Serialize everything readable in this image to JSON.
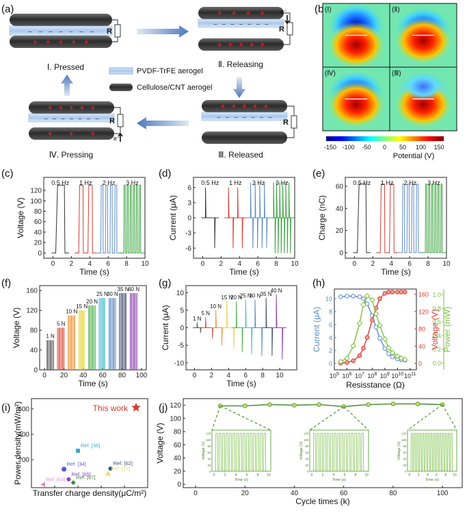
{
  "panel_labels": [
    "(a)",
    "(b)",
    "(c)",
    "(d)",
    "(e)",
    "(f)",
    "(g)",
    "(h)",
    "(i)",
    "(j)"
  ],
  "schematic": {
    "stages": [
      "Ⅰ. Pressed",
      "Ⅱ. Releasing",
      "Ⅲ. Released",
      "Ⅳ. Pressing"
    ],
    "legend": [
      "PVDF-TrFE aerogel",
      "Cellulose/CNT aerogel"
    ],
    "resistor_label": "R",
    "electron_label": "e⁻",
    "plus_sign": "+",
    "minus_sign": "–",
    "colors": {
      "electrode": "#333333",
      "film": "#b9d3f0",
      "arrow": "#5b86c4",
      "charge": "#e02020"
    }
  },
  "potential_map": {
    "quadrants": [
      "(Ⅰ)",
      "(Ⅱ)",
      "(Ⅳ)",
      "(Ⅲ)"
    ],
    "colorbar_ticks": [
      "-150",
      "-100",
      "-50",
      "0",
      "50",
      "100",
      "150"
    ],
    "colorbar_label": "Potential (V)"
  },
  "chart_data": [
    {
      "id": "c",
      "type": "line",
      "title": "",
      "xlabel": "Time (s)",
      "ylabel": "Voltage (V)",
      "xlim": [
        -1,
        10
      ],
      "ylim": [
        -10,
        145
      ],
      "xticks": [
        0,
        2,
        4,
        6,
        8,
        10
      ],
      "yticks": [
        0,
        20,
        40,
        60,
        80,
        100,
        120
      ],
      "annotations": [
        "0.5 Hz",
        "1 Hz",
        "2 Hz",
        "3 Hz"
      ],
      "series": [
        {
          "name": "0.5 Hz",
          "color": "#333333",
          "pulses": [
            {
              "t0": 0.3,
              "t1": 1.3
            }
          ],
          "high": 130,
          "low": 0
        },
        {
          "name": "1 Hz",
          "color": "#d63a2e",
          "pulses": [
            {
              "t0": 2.8,
              "t1": 3.3
            },
            {
              "t0": 3.8,
              "t1": 4.3
            }
          ],
          "high": 130,
          "low": 0
        },
        {
          "name": "2 Hz",
          "color": "#5b8ac6",
          "pulses": [
            {
              "t0": 5.2,
              "t1": 5.45
            },
            {
              "t0": 5.7,
              "t1": 5.95
            },
            {
              "t0": 6.2,
              "t1": 6.45
            },
            {
              "t0": 6.7,
              "t1": 6.95
            }
          ],
          "high": 130,
          "low": 0
        },
        {
          "name": "3 Hz",
          "color": "#35a13a",
          "pulses": [
            {
              "t0": 7.7,
              "t1": 7.87
            },
            {
              "t0": 8.03,
              "t1": 8.2
            },
            {
              "t0": 8.37,
              "t1": 8.53
            },
            {
              "t0": 8.7,
              "t1": 8.87
            },
            {
              "t0": 9.03,
              "t1": 9.2
            },
            {
              "t0": 9.37,
              "t1": 9.53
            }
          ],
          "high": 130,
          "low": 0
        }
      ]
    },
    {
      "id": "d",
      "type": "line",
      "title": "",
      "xlabel": "Time (s)",
      "ylabel": "Current (μA)",
      "xlim": [
        -1,
        10
      ],
      "ylim": [
        -8,
        8
      ],
      "xticks": [
        0,
        2,
        4,
        6,
        8,
        10
      ],
      "yticks": [
        -6,
        -3,
        0,
        3,
        6
      ],
      "annotations": [
        "0.5 Hz",
        "1 Hz",
        "2 Hz",
        "3 Hz"
      ],
      "series": [
        {
          "name": "0.5 Hz",
          "color": "#333333",
          "peaks": [
            {
              "t": 0.3,
              "v": 6
            },
            {
              "t": 1.3,
              "v": -6
            }
          ]
        },
        {
          "name": "1 Hz",
          "color": "#d63a2e",
          "peaks": [
            {
              "t": 2.8,
              "v": 6
            },
            {
              "t": 3.3,
              "v": -6
            },
            {
              "t": 3.8,
              "v": 6
            },
            {
              "t": 4.3,
              "v": -6
            }
          ]
        },
        {
          "name": "2 Hz",
          "color": "#5b8ac6",
          "peaks": [
            {
              "t": 5.2,
              "v": 7
            },
            {
              "t": 5.45,
              "v": -6
            },
            {
              "t": 5.7,
              "v": 7
            },
            {
              "t": 5.95,
              "v": -6
            },
            {
              "t": 6.2,
              "v": 7
            },
            {
              "t": 6.45,
              "v": -6
            },
            {
              "t": 6.7,
              "v": 7
            },
            {
              "t": 6.95,
              "v": -6
            }
          ]
        },
        {
          "name": "3 Hz",
          "color": "#35a13a",
          "peaks": [
            {
              "t": 7.7,
              "v": 7
            },
            {
              "t": 7.87,
              "v": -7
            },
            {
              "t": 8.03,
              "v": 7
            },
            {
              "t": 8.2,
              "v": -7
            },
            {
              "t": 8.37,
              "v": 7
            },
            {
              "t": 8.53,
              "v": -7
            },
            {
              "t": 8.7,
              "v": 7
            },
            {
              "t": 8.87,
              "v": -7
            },
            {
              "t": 9.03,
              "v": 7
            },
            {
              "t": 9.2,
              "v": -7
            },
            {
              "t": 9.37,
              "v": 7
            },
            {
              "t": 9.53,
              "v": -7
            }
          ]
        }
      ]
    },
    {
      "id": "e",
      "type": "line",
      "title": "",
      "xlabel": "Time (s)",
      "ylabel": "Charge (nC)",
      "xlim": [
        -1,
        10
      ],
      "ylim": [
        -5,
        68
      ],
      "xticks": [
        0,
        2,
        4,
        6,
        8,
        10
      ],
      "yticks": [
        0,
        20,
        40,
        60
      ],
      "annotations": [
        "0.5 Hz",
        "1 Hz",
        "2 Hz",
        "3 Hz"
      ],
      "series": [
        {
          "name": "0.5 Hz",
          "color": "#333333",
          "pulses": [
            {
              "t0": 0.3,
              "t1": 1.3
            }
          ],
          "high": 62,
          "low": 0
        },
        {
          "name": "1 Hz",
          "color": "#d63a2e",
          "pulses": [
            {
              "t0": 2.8,
              "t1": 3.3
            },
            {
              "t0": 3.8,
              "t1": 4.3
            }
          ],
          "high": 62,
          "low": 0
        },
        {
          "name": "2 Hz",
          "color": "#5b8ac6",
          "pulses": [
            {
              "t0": 5.2,
              "t1": 5.45
            },
            {
              "t0": 5.7,
              "t1": 5.95
            },
            {
              "t0": 6.2,
              "t1": 6.45
            },
            {
              "t0": 6.7,
              "t1": 6.95
            }
          ],
          "high": 62,
          "low": 0
        },
        {
          "name": "3 Hz",
          "color": "#35a13a",
          "pulses": [
            {
              "t0": 7.7,
              "t1": 7.87
            },
            {
              "t0": 8.03,
              "t1": 8.2
            },
            {
              "t0": 8.37,
              "t1": 8.53
            },
            {
              "t0": 8.7,
              "t1": 8.87
            },
            {
              "t0": 9.03,
              "t1": 9.2
            },
            {
              "t0": 9.37,
              "t1": 9.53
            }
          ],
          "high": 62,
          "low": 0
        }
      ]
    },
    {
      "id": "f",
      "type": "bar",
      "title": "",
      "xlabel": "Time (s)",
      "ylabel": "Voltage (V)",
      "xlim": [
        -5,
        105
      ],
      "ylim": [
        0,
        170
      ],
      "xticks": [
        0,
        20,
        40,
        60,
        80,
        100
      ],
      "yticks": [
        0,
        40,
        80,
        120,
        160
      ],
      "series": [
        {
          "name": "1 N",
          "color": "#555555",
          "t0": 2,
          "t1": 10,
          "value": 60
        },
        {
          "name": "5 N",
          "color": "#d84a3c",
          "t0": 13,
          "t1": 21,
          "value": 85
        },
        {
          "name": "10 N",
          "color": "#f09030",
          "t0": 24,
          "t1": 32,
          "value": 110
        },
        {
          "name": "15 N",
          "color": "#e5d338",
          "t0": 35,
          "t1": 42,
          "value": 120
        },
        {
          "name": "20 N",
          "color": "#50b04f",
          "t0": 45,
          "t1": 53,
          "value": 130
        },
        {
          "name": "25 N",
          "color": "#45b8c8",
          "t0": 56,
          "t1": 63,
          "value": 145
        },
        {
          "name": "30 N",
          "color": "#5b8ac6",
          "t0": 66,
          "t1": 74,
          "value": 145
        },
        {
          "name": "35 N",
          "color": "#455070",
          "t0": 77,
          "t1": 85,
          "value": 155
        },
        {
          "name": "40 N",
          "color": "#8e44ad",
          "t0": 88,
          "t1": 96,
          "value": 155
        }
      ]
    },
    {
      "id": "g",
      "type": "line",
      "title": "",
      "xlabel": "Time (s)",
      "ylabel": "Current (μA)",
      "xlim": [
        -1,
        12
      ],
      "ylim": [
        -12,
        12
      ],
      "xticks": [
        0,
        2,
        4,
        6,
        8,
        10
      ],
      "yticks": [
        -10,
        -5,
        0,
        5,
        10
      ],
      "series": [
        {
          "name": "1 N",
          "color": "#555555",
          "peaks": [
            {
              "t": 0.3,
              "v": 1.5
            },
            {
              "t": 0.7,
              "v": -1.5
            }
          ]
        },
        {
          "name": "5 N",
          "color": "#d84a3c",
          "peaks": [
            {
              "t": 1.3,
              "v": 3
            },
            {
              "t": 2.1,
              "v": -3
            }
          ]
        },
        {
          "name": "10 N",
          "color": "#f09030",
          "peaks": [
            {
              "t": 2.5,
              "v": 5
            },
            {
              "t": 3.2,
              "v": -5
            }
          ]
        },
        {
          "name": "15 N",
          "color": "#e5d338",
          "peaks": [
            {
              "t": 3.8,
              "v": 7.5
            },
            {
              "t": 4.6,
              "v": -6
            }
          ]
        },
        {
          "name": "20 N",
          "color": "#50b04f",
          "peaks": [
            {
              "t": 4.9,
              "v": 7.5
            },
            {
              "t": 5.6,
              "v": -7
            }
          ]
        },
        {
          "name": "25 N",
          "color": "#45b8c8",
          "peaks": [
            {
              "t": 6.0,
              "v": 8
            },
            {
              "t": 6.7,
              "v": -7.5
            }
          ]
        },
        {
          "name": "30 N",
          "color": "#5b8ac6",
          "peaks": [
            {
              "t": 7.1,
              "v": 8
            },
            {
              "t": 7.9,
              "v": -8
            }
          ]
        },
        {
          "name": "35 N",
          "color": "#455070",
          "peaks": [
            {
              "t": 8.4,
              "v": 8.5
            },
            {
              "t": 9.1,
              "v": -8
            }
          ]
        },
        {
          "name": "40 N",
          "color": "#8e44ad",
          "peaks": [
            {
              "t": 9.6,
              "v": 9.5
            },
            {
              "t": 10.3,
              "v": -9
            }
          ]
        }
      ]
    },
    {
      "id": "h",
      "type": "line",
      "title": "",
      "xlabel": "Resisstance (Ω)",
      "ylabel": "Current (μA)",
      "ylabel_mid": "Voltage (V)",
      "ylabel_right": "Power (mW)",
      "xlim_log10": [
        5,
        11.5
      ],
      "xticks_log10": [
        5,
        6,
        7,
        8,
        9,
        10,
        11
      ],
      "left_ylim": [
        -1,
        11.5
      ],
      "left_yticks": [
        0,
        2,
        4,
        6,
        8,
        10
      ],
      "mid_ylim": [
        -15,
        172
      ],
      "mid_yticks": [
        0,
        40,
        80,
        120,
        160
      ],
      "right_ylim": [
        -0.1,
        1.08
      ],
      "right_yticks": [
        0.0,
        0.2,
        0.4,
        0.6,
        0.8,
        1.0
      ],
      "series": [
        {
          "name": "Current",
          "axis": "left",
          "color": "#5b8ac6",
          "marker": "circle-open",
          "x_log10": [
            5.5,
            6,
            6.5,
            7,
            7.3,
            7.6,
            8,
            8.3,
            8.6,
            9,
            9.3,
            9.6,
            10,
            10.3,
            10.6
          ],
          "values": [
            10.3,
            10.4,
            10.4,
            10.3,
            10,
            9.2,
            7.4,
            5.6,
            3.9,
            2.3,
            1.5,
            1.0,
            0.7,
            0.55,
            0.5
          ]
        },
        {
          "name": "Voltage",
          "axis": "mid",
          "color": "#d63a2e",
          "marker": "circle-filled",
          "x_log10": [
            5.5,
            6,
            6.5,
            7,
            7.3,
            7.6,
            8,
            8.3,
            8.6,
            9,
            9.3,
            9.6,
            10,
            10.3,
            10.6
          ],
          "values": [
            0.5,
            2,
            6,
            18,
            35,
            60,
            100,
            128,
            150,
            162,
            165,
            165,
            165,
            165,
            165
          ]
        },
        {
          "name": "Power",
          "axis": "right",
          "color": "#7ac143",
          "marker": "diamond-open",
          "x_log10": [
            5.5,
            6,
            6.5,
            7,
            7.3,
            7.6,
            8,
            8.3,
            8.6,
            9,
            9.3,
            9.6,
            10,
            10.3,
            10.6
          ],
          "values": [
            0.02,
            0.07,
            0.25,
            0.58,
            0.85,
            0.98,
            0.92,
            0.72,
            0.55,
            0.35,
            0.22,
            0.15,
            0.1,
            0.07,
            0.05
          ]
        }
      ]
    },
    {
      "id": "i",
      "type": "scatter",
      "title": "",
      "xlabel": "Transfer charge density(μC/m²)",
      "ylabel": "Power density(mW/m²)",
      "xlim": [
        0,
        50
      ],
      "ylim": [
        -20,
        680
      ],
      "xticks": [
        0,
        10,
        20,
        30,
        40
      ],
      "yticks": [
        200,
        400,
        600
      ],
      "points": [
        {
          "label": "This work",
          "x": 45,
          "y": 610,
          "color": "#d63a2e",
          "shape": "star"
        },
        {
          "label": "Ref. [36]",
          "x": 20,
          "y": 270,
          "color": "#35a8d8",
          "shape": "square"
        },
        {
          "label": "Ref. [62]",
          "x": 34,
          "y": 130,
          "color": "#35507a",
          "shape": "circle"
        },
        {
          "label": "Ref. [34]",
          "x": 14,
          "y": 125,
          "color": "#5a5ad0",
          "shape": "hexagon"
        },
        {
          "label": "Ref. [65]",
          "x": 16,
          "y": 45,
          "color": "#8a3fd0",
          "shape": "circle"
        },
        {
          "label": "Ref. [67]",
          "x": 18,
          "y": 20,
          "color": "#3a8a3a",
          "shape": "diamond"
        },
        {
          "label": "Ref. [64]",
          "x": 5,
          "y": 5,
          "color": "#e090d0",
          "shape": "triangle-left"
        },
        {
          "label": "Ref. [22]",
          "x": 33,
          "y": 90,
          "color": "#e8e060",
          "shape": "triangle"
        }
      ]
    },
    {
      "id": "j",
      "type": "line",
      "title": "",
      "xlabel": "Cycle times (k)",
      "ylabel": "Voltage (V)",
      "xlim": [
        -5,
        108
      ],
      "ylim": [
        -5,
        130
      ],
      "xticks": [
        0,
        20,
        40,
        60,
        80,
        100
      ],
      "yticks": [
        0,
        20,
        40,
        60,
        80,
        100,
        120
      ],
      "series": [
        {
          "name": "Voltage",
          "color": "#3d8a2a",
          "marker": "circle-filled",
          "x": [
            10,
            20,
            30,
            40,
            50,
            60,
            70,
            80,
            90,
            100
          ],
          "values": [
            119,
            119,
            121,
            120,
            121,
            118,
            121,
            122,
            122,
            121
          ]
        }
      ],
      "insets": [
        {
          "xlabel": "Time (s)",
          "ylabel": "Voltage (V)",
          "xticks": [
            0,
            2,
            4,
            6,
            8,
            10
          ],
          "yticks": [
            0,
            20,
            40,
            60,
            80,
            100,
            120
          ],
          "pulses": 15,
          "high": 120,
          "zoom_from_x": 10
        },
        {
          "xlabel": "Time (s)",
          "ylabel": "Voltage (V)",
          "xticks": [
            0,
            2,
            4,
            6,
            8,
            10
          ],
          "yticks": [
            0,
            20,
            40,
            60,
            80,
            100,
            120
          ],
          "pulses": 15,
          "high": 120,
          "zoom_from_x": 60
        },
        {
          "xlabel": "Time (s)",
          "ylabel": "Voltage (V)",
          "xticks": [
            0,
            2,
            4,
            6,
            8,
            10
          ],
          "yticks": [
            0,
            20,
            40,
            60,
            80,
            100,
            120
          ],
          "pulses": 15,
          "high": 120,
          "zoom_from_x": 100
        }
      ]
    }
  ]
}
